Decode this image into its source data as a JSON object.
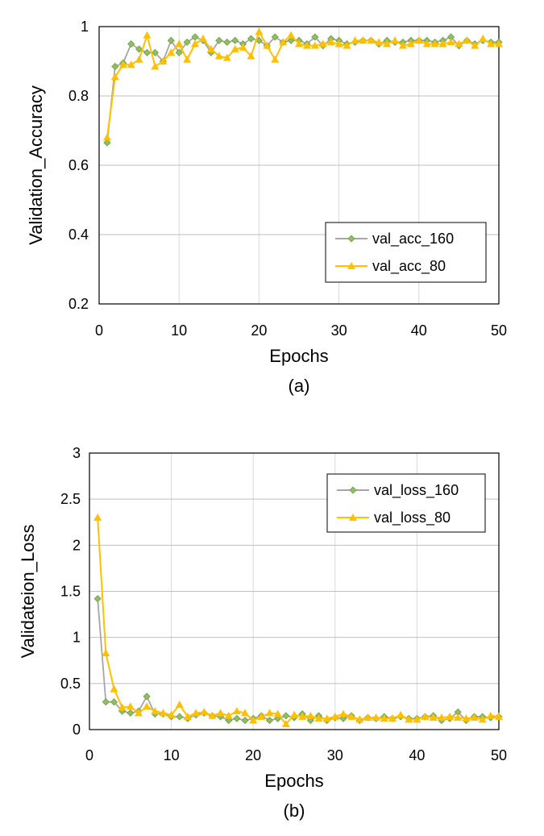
{
  "figure": {
    "captions": [
      "(a)",
      "(b)"
    ]
  },
  "chart_data": [
    {
      "type": "line",
      "panel_caption": "(a)",
      "xlabel": "Epochs",
      "ylabel": "Validation_Accuracy",
      "xlim": [
        0,
        50
      ],
      "ylim": [
        0.2,
        1.0
      ],
      "xticks": [
        0,
        10,
        20,
        30,
        40,
        50
      ],
      "yticks": [
        0.2,
        0.4,
        0.6,
        0.8,
        1.0
      ],
      "xtick_labels": [
        "0",
        "10",
        "20",
        "30",
        "40",
        "50"
      ],
      "ytick_labels": [
        "0.2",
        "0.4",
        "0.6",
        "0.8",
        "1"
      ],
      "grid": "vertical and horizontal",
      "legend_position": "lower-right",
      "x": [
        1,
        2,
        3,
        4,
        5,
        6,
        7,
        8,
        9,
        10,
        11,
        12,
        13,
        14,
        15,
        16,
        17,
        18,
        19,
        20,
        21,
        22,
        23,
        24,
        25,
        26,
        27,
        28,
        29,
        30,
        31,
        32,
        33,
        34,
        35,
        36,
        37,
        38,
        39,
        40,
        41,
        42,
        43,
        44,
        45,
        46,
        47,
        48,
        49,
        50
      ],
      "series": [
        {
          "name": "val_acc_160",
          "color": "#a6a6a6",
          "marker": "diamond",
          "marker_fill": "#8fbf5f",
          "values": [
            0.665,
            0.885,
            0.895,
            0.95,
            0.935,
            0.925,
            0.925,
            0.9,
            0.96,
            0.925,
            0.955,
            0.97,
            0.96,
            0.925,
            0.96,
            0.955,
            0.96,
            0.95,
            0.965,
            0.96,
            0.945,
            0.97,
            0.955,
            0.96,
            0.96,
            0.95,
            0.97,
            0.945,
            0.965,
            0.96,
            0.95,
            0.955,
            0.96,
            0.96,
            0.95,
            0.96,
            0.955,
            0.955,
            0.96,
            0.96,
            0.96,
            0.955,
            0.96,
            0.97,
            0.945,
            0.96,
            0.95,
            0.96,
            0.955,
            0.955
          ]
        },
        {
          "name": "val_acc_80",
          "color": "#ffc000",
          "marker": "triangle",
          "marker_fill": "#ffc000",
          "values": [
            0.68,
            0.855,
            0.89,
            0.89,
            0.905,
            0.975,
            0.885,
            0.9,
            0.925,
            0.95,
            0.905,
            0.95,
            0.965,
            0.935,
            0.915,
            0.91,
            0.935,
            0.94,
            0.915,
            0.985,
            0.945,
            0.905,
            0.955,
            0.975,
            0.95,
            0.945,
            0.945,
            0.95,
            0.955,
            0.95,
            0.945,
            0.96,
            0.96,
            0.96,
            0.955,
            0.95,
            0.96,
            0.945,
            0.95,
            0.96,
            0.95,
            0.95,
            0.95,
            0.955,
            0.95,
            0.96,
            0.945,
            0.965,
            0.95,
            0.95
          ]
        }
      ]
    },
    {
      "type": "line",
      "panel_caption": "(b)",
      "xlabel": "Epochs",
      "ylabel": "Validateion_Loss",
      "xlim": [
        0,
        50
      ],
      "ylim": [
        0,
        3
      ],
      "xticks": [
        0,
        10,
        20,
        30,
        40,
        50
      ],
      "yticks": [
        0,
        0.5,
        1,
        1.5,
        2,
        2.5,
        3
      ],
      "xtick_labels": [
        "0",
        "10",
        "20",
        "30",
        "40",
        "50"
      ],
      "ytick_labels": [
        "0",
        "0.5",
        "1",
        "1.5",
        "2",
        "2.5",
        "3"
      ],
      "grid": "vertical and horizontal",
      "legend_position": "top-right",
      "x": [
        1,
        2,
        3,
        4,
        5,
        6,
        7,
        8,
        9,
        10,
        11,
        12,
        13,
        14,
        15,
        16,
        17,
        18,
        19,
        20,
        21,
        22,
        23,
        24,
        25,
        26,
        27,
        28,
        29,
        30,
        31,
        32,
        33,
        34,
        35,
        36,
        37,
        38,
        39,
        40,
        41,
        42,
        43,
        44,
        45,
        46,
        47,
        48,
        49,
        50
      ],
      "series": [
        {
          "name": "val_loss_160",
          "color": "#a6a6a6",
          "marker": "diamond",
          "marker_fill": "#8fbf5f",
          "values": [
            1.42,
            0.3,
            0.3,
            0.2,
            0.18,
            0.2,
            0.36,
            0.17,
            0.17,
            0.14,
            0.14,
            0.12,
            0.16,
            0.18,
            0.15,
            0.14,
            0.1,
            0.12,
            0.1,
            0.12,
            0.15,
            0.1,
            0.12,
            0.15,
            0.13,
            0.17,
            0.1,
            0.15,
            0.1,
            0.13,
            0.12,
            0.15,
            0.1,
            0.13,
            0.12,
            0.14,
            0.12,
            0.14,
            0.12,
            0.12,
            0.14,
            0.15,
            0.1,
            0.12,
            0.19,
            0.1,
            0.14,
            0.14,
            0.13,
            0.14
          ]
        },
        {
          "name": "val_loss_80",
          "color": "#ffc000",
          "marker": "triangle",
          "marker_fill": "#ffc000",
          "values": [
            2.3,
            0.83,
            0.44,
            0.24,
            0.25,
            0.18,
            0.25,
            0.2,
            0.18,
            0.16,
            0.27,
            0.14,
            0.18,
            0.19,
            0.15,
            0.18,
            0.15,
            0.2,
            0.18,
            0.1,
            0.14,
            0.18,
            0.17,
            0.06,
            0.16,
            0.14,
            0.15,
            0.12,
            0.12,
            0.14,
            0.17,
            0.14,
            0.11,
            0.13,
            0.13,
            0.12,
            0.12,
            0.16,
            0.11,
            0.11,
            0.14,
            0.13,
            0.13,
            0.14,
            0.13,
            0.12,
            0.13,
            0.11,
            0.15,
            0.14
          ]
        }
      ]
    }
  ]
}
